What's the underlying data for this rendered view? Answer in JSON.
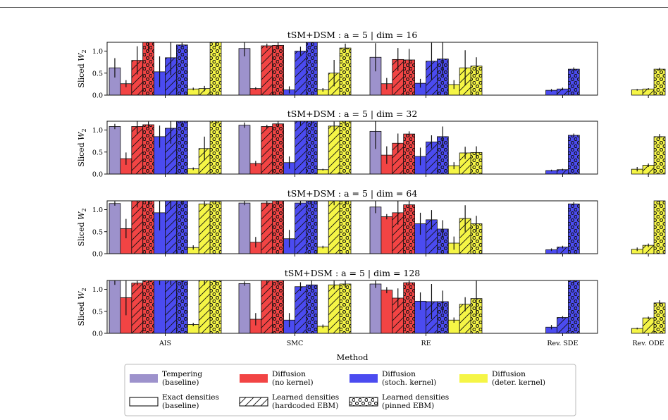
{
  "figure": {
    "xlabel": "Method",
    "ylabel_main": "Sliced ",
    "ylabel_var": "W",
    "ylabel_sub": "2",
    "categories": [
      "AIS",
      "SMC",
      "RE",
      "Rev. SDE",
      "Rev. ODE"
    ],
    "yticks": [
      "0.0",
      "0.5",
      "1.0"
    ],
    "ylim": [
      0,
      1.2
    ]
  },
  "colors": {
    "tempering": "#9d92cc",
    "no_kernel": "#f24444",
    "stoch_kernel": "#4b4bf0",
    "deter_kernel": "#f5f546"
  },
  "legend": {
    "entries": [
      {
        "line1": "Tempering",
        "line2": "(baseline)",
        "kind": "color",
        "color": "#9d92cc"
      },
      {
        "line1": "Diffusion",
        "line2": "(no kernel)",
        "kind": "color",
        "color": "#f24444"
      },
      {
        "line1": "Diffusion",
        "line2": "(stoch. kernel)",
        "kind": "color",
        "color": "#4b4bf0"
      },
      {
        "line1": "Diffusion",
        "line2": "(deter. kernel)",
        "kind": "color",
        "color": "#f5f546"
      },
      {
        "line1": "Exact densities",
        "line2": "(baseline)",
        "kind": "plain"
      },
      {
        "line1": "Learned densities",
        "line2": "(hardcoded EBM)",
        "kind": "hatch"
      },
      {
        "line1": "Learned densities",
        "line2": "(pinned EBM)",
        "kind": "dots"
      }
    ]
  },
  "chart_data": [
    {
      "type": "bar",
      "title": "tSM+DSM : a = 5 | dim = 16",
      "categories": [
        "AIS",
        "SMC",
        "RE",
        "Rev. SDE",
        "Rev. ODE"
      ],
      "ylim": [
        0,
        1.2
      ],
      "bars": {
        "AIS": [
          [
            0.62,
            0.22
          ],
          [
            0.26,
            0.08
          ],
          [
            0.79,
            0.32
          ],
          [
            1.2,
            0.2
          ],
          [
            0.53,
            0.35
          ],
          [
            0.85,
            0.4
          ],
          [
            1.14,
            0.05
          ],
          [
            0.14,
            0.03
          ],
          [
            0.15,
            0.06
          ],
          [
            1.2,
            0.1
          ]
        ],
        "SMC": [
          [
            1.06,
            0.18
          ],
          [
            0.15,
            0.03
          ],
          [
            1.12,
            0.05
          ],
          [
            1.13,
            0.07
          ],
          [
            0.12,
            0.08
          ],
          [
            1.0,
            0.1
          ],
          [
            1.2,
            0.1
          ],
          [
            0.12,
            0.04
          ],
          [
            0.5,
            0.3
          ],
          [
            1.07,
            0.1
          ]
        ],
        "RE": [
          [
            0.86,
            0.32
          ],
          [
            0.26,
            0.13
          ],
          [
            0.81,
            0.26
          ],
          [
            0.8,
            0.25
          ],
          [
            0.27,
            0.1
          ],
          [
            0.77,
            0.42
          ],
          [
            0.82,
            0.38
          ],
          [
            0.24,
            0.1
          ],
          [
            0.62,
            0.4
          ],
          [
            0.66,
            0.2
          ]
        ],
        "Rev. SDE": [
          [
            null,
            null
          ],
          [
            null,
            null
          ],
          [
            null,
            null
          ],
          [
            null,
            null
          ],
          [
            0.11,
            0.03
          ],
          [
            0.14,
            0.03
          ],
          [
            0.59,
            0.04
          ],
          [
            null,
            null
          ],
          [
            null,
            null
          ],
          [
            null,
            null
          ]
        ],
        "Rev. ODE": [
          [
            null,
            null
          ],
          [
            null,
            null
          ],
          [
            null,
            null
          ],
          [
            null,
            null
          ],
          [
            null,
            null
          ],
          [
            null,
            null
          ],
          [
            null,
            null
          ],
          [
            0.12,
            0.02
          ],
          [
            0.14,
            0.02
          ],
          [
            0.59,
            0.03
          ]
        ]
      }
    },
    {
      "type": "bar",
      "title": "tSM+DSM : a = 5 | dim = 32",
      "categories": [
        "AIS",
        "SMC",
        "RE",
        "Rev. SDE",
        "Rev. ODE"
      ],
      "ylim": [
        0,
        1.2
      ],
      "bars": {
        "AIS": [
          [
            1.08,
            0.06
          ],
          [
            0.35,
            0.14
          ],
          [
            1.08,
            0.16
          ],
          [
            1.12,
            0.07
          ],
          [
            0.85,
            0.25
          ],
          [
            1.04,
            0.35
          ],
          [
            1.2,
            0.1
          ],
          [
            0.12,
            0.03
          ],
          [
            0.58,
            0.27
          ],
          [
            1.2,
            0.1
          ]
        ],
        "SMC": [
          [
            1.11,
            0.06
          ],
          [
            0.24,
            0.06
          ],
          [
            1.08,
            0.04
          ],
          [
            1.14,
            0.08
          ],
          [
            0.26,
            0.14
          ],
          [
            1.2,
            0.1
          ],
          [
            1.2,
            0.1
          ],
          [
            0.1,
            0.02
          ],
          [
            1.09,
            0.1
          ],
          [
            1.2,
            0.1
          ]
        ],
        "RE": [
          [
            0.97,
            0.4
          ],
          [
            0.43,
            0.2
          ],
          [
            0.7,
            0.22
          ],
          [
            0.91,
            0.06
          ],
          [
            0.4,
            0.2
          ],
          [
            0.73,
            0.15
          ],
          [
            0.85,
            0.23
          ],
          [
            0.19,
            0.08
          ],
          [
            0.48,
            0.14
          ],
          [
            0.49,
            0.14
          ]
        ],
        "Rev. SDE": [
          [
            null,
            null
          ],
          [
            null,
            null
          ],
          [
            null,
            null
          ],
          [
            null,
            null
          ],
          [
            0.08,
            0.02
          ],
          [
            0.1,
            0.02
          ],
          [
            0.88,
            0.04
          ],
          [
            null,
            null
          ],
          [
            null,
            null
          ],
          [
            null,
            null
          ]
        ],
        "Rev. ODE": [
          [
            null,
            null
          ],
          [
            null,
            null
          ],
          [
            null,
            null
          ],
          [
            null,
            null
          ],
          [
            null,
            null
          ],
          [
            null,
            null
          ],
          [
            null,
            null
          ],
          [
            0.11,
            0.05
          ],
          [
            0.2,
            0.04
          ],
          [
            0.85,
            0.06
          ]
        ]
      }
    },
    {
      "type": "bar",
      "title": "tSM+DSM : a = 5 | dim = 64",
      "categories": [
        "AIS",
        "SMC",
        "RE",
        "Rev. SDE",
        "Rev. ODE"
      ],
      "ylim": [
        0,
        1.2
      ],
      "bars": {
        "AIS": [
          [
            1.14,
            0.05
          ],
          [
            0.57,
            0.22
          ],
          [
            1.2,
            0.15
          ],
          [
            1.2,
            0.1
          ],
          [
            0.93,
            0.4
          ],
          [
            1.2,
            0.2
          ],
          [
            1.2,
            0.1
          ],
          [
            0.14,
            0.05
          ],
          [
            1.13,
            0.06
          ],
          [
            1.18,
            0.06
          ]
        ],
        "SMC": [
          [
            1.15,
            0.05
          ],
          [
            0.26,
            0.12
          ],
          [
            1.15,
            0.08
          ],
          [
            1.2,
            0.1
          ],
          [
            0.34,
            0.2
          ],
          [
            1.15,
            0.05
          ],
          [
            1.2,
            0.1
          ],
          [
            0.15,
            0.03
          ],
          [
            1.2,
            0.1
          ],
          [
            1.2,
            0.1
          ]
        ],
        "RE": [
          [
            1.06,
            0.14
          ],
          [
            0.84,
            0.06
          ],
          [
            0.93,
            0.27
          ],
          [
            1.11,
            0.08
          ],
          [
            0.68,
            0.25
          ],
          [
            0.77,
            0.22
          ],
          [
            0.56,
            0.2
          ],
          [
            0.24,
            0.15
          ],
          [
            0.8,
            0.3
          ],
          [
            0.68,
            0.18
          ]
        ],
        "Rev. SDE": [
          [
            null,
            null
          ],
          [
            null,
            null
          ],
          [
            null,
            null
          ],
          [
            null,
            null
          ],
          [
            0.09,
            0.03
          ],
          [
            0.15,
            0.03
          ],
          [
            1.13,
            0.04
          ],
          [
            null,
            null
          ],
          [
            null,
            null
          ],
          [
            null,
            null
          ]
        ],
        "Rev. ODE": [
          [
            null,
            null
          ],
          [
            null,
            null
          ],
          [
            null,
            null
          ],
          [
            null,
            null
          ],
          [
            null,
            null
          ],
          [
            null,
            null
          ],
          [
            null,
            null
          ],
          [
            0.1,
            0.04
          ],
          [
            0.19,
            0.04
          ],
          [
            1.2,
            0.1
          ]
        ]
      }
    },
    {
      "type": "bar",
      "title": "tSM+DSM : a = 5 | dim = 128",
      "categories": [
        "AIS",
        "SMC",
        "RE",
        "Rev. SDE",
        "Rev. ODE"
      ],
      "ylim": [
        0,
        1.2
      ],
      "bars": {
        "AIS": [
          [
            1.2,
            0.1
          ],
          [
            0.81,
            0.4
          ],
          [
            1.14,
            0.05
          ],
          [
            1.2,
            0.05
          ],
          [
            1.2,
            0.1
          ],
          [
            1.2,
            0.1
          ],
          [
            1.2,
            0.1
          ],
          [
            0.2,
            0.04
          ],
          [
            1.2,
            0.1
          ],
          [
            1.2,
            0.1
          ]
        ],
        "SMC": [
          [
            1.13,
            0.05
          ],
          [
            0.32,
            0.14
          ],
          [
            1.2,
            0.1
          ],
          [
            1.2,
            0.1
          ],
          [
            0.3,
            0.16
          ],
          [
            1.06,
            0.1
          ],
          [
            1.1,
            0.1
          ],
          [
            0.16,
            0.04
          ],
          [
            1.1,
            0.1
          ],
          [
            1.12,
            0.08
          ]
        ],
        "RE": [
          [
            1.12,
            0.09
          ],
          [
            0.98,
            0.07
          ],
          [
            0.8,
            0.22
          ],
          [
            1.15,
            0.06
          ],
          [
            0.73,
            0.2
          ],
          [
            0.72,
            0.4
          ],
          [
            0.72,
            0.25
          ],
          [
            0.3,
            0.06
          ],
          [
            0.66,
            0.16
          ],
          [
            0.79,
            0.4
          ]
        ],
        "Rev. SDE": [
          [
            null,
            null
          ],
          [
            null,
            null
          ],
          [
            null,
            null
          ],
          [
            null,
            null
          ],
          [
            0.14,
            0.05
          ],
          [
            0.36,
            0.03
          ],
          [
            1.2,
            0.1
          ],
          [
            null,
            null
          ],
          [
            null,
            null
          ],
          [
            null,
            null
          ]
        ],
        "Rev. ODE": [
          [
            null,
            null
          ],
          [
            null,
            null
          ],
          [
            null,
            null
          ],
          [
            null,
            null
          ],
          [
            null,
            null
          ],
          [
            null,
            null
          ],
          [
            null,
            null
          ],
          [
            0.11,
            0.02
          ],
          [
            0.35,
            0.03
          ],
          [
            0.69,
            0.06
          ]
        ]
      }
    }
  ]
}
